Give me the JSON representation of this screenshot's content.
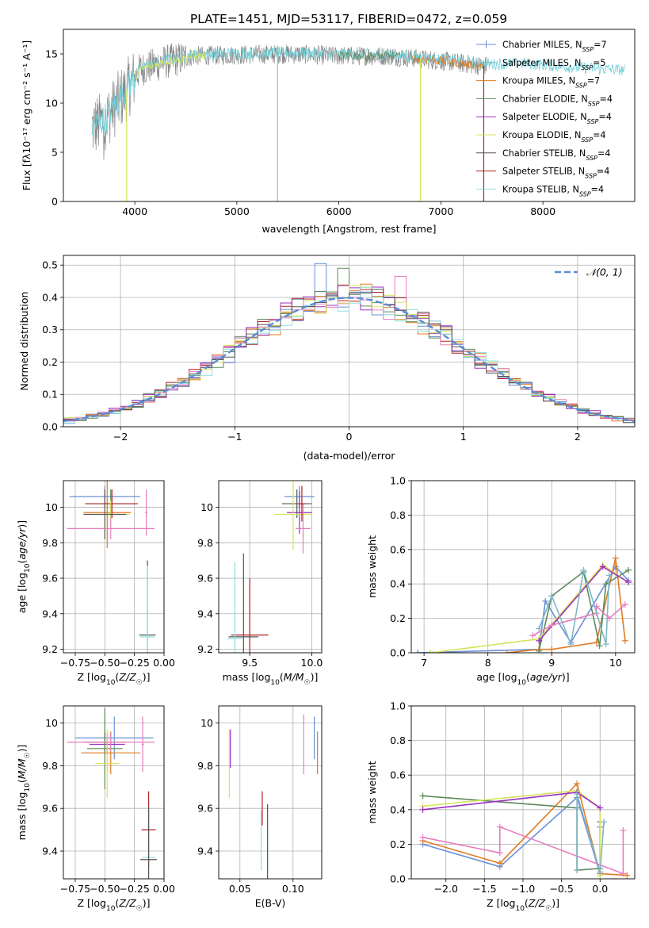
{
  "figure_title": "PLATE=1451, MJD=53117, FIBERID=0472, z=0.059",
  "chart_data": [
    {
      "id": "spectrum",
      "type": "line",
      "title": "PLATE=1451, MJD=53117, FIBERID=0472, z=0.059",
      "xlabel": "wavelength [Angstrom, rest frame]",
      "ylabel": "Flux [fλ10⁻¹⁷ erg cm⁻² s⁻¹ A⁻¹]",
      "xlim": [
        3300,
        8900
      ],
      "ylim": [
        0,
        17.5
      ],
      "xticks": [
        4000,
        5000,
        6000,
        7000,
        8000
      ],
      "yticks": [
        0,
        5,
        10,
        15
      ],
      "grid": false,
      "legend_position": "top-right",
      "legend": [
        {
          "label": "Chabrier MILES, N",
          "sub": "SSP",
          "tail": "=7",
          "color": "#6a8fd6"
        },
        {
          "label": "Salpeter MILES, N",
          "sub": "SSP",
          "tail": "=5",
          "color": "#7fb6c6"
        },
        {
          "label": "Kroupa MILES, N",
          "sub": "SSP",
          "tail": "=7",
          "color": "#e07b25"
        },
        {
          "label": "Chabrier ELODIE, N",
          "sub": "SSP",
          "tail": "=4",
          "color": "#5c8a5c"
        },
        {
          "label": "Salpeter ELODIE, N",
          "sub": "SSP",
          "tail": "=4",
          "color": "#9b30c0"
        },
        {
          "label": "Kroupa ELODIE, N",
          "sub": "SSP",
          "tail": "=4",
          "color": "#d7e35a"
        },
        {
          "label": "Chabrier STELIB, N",
          "sub": "SSP",
          "tail": "=4",
          "color": "#555555"
        },
        {
          "label": "Salpeter STELIB, N",
          "sub": "SSP",
          "tail": "=4",
          "color": "#b22222"
        },
        {
          "label": "Kroupa STELIB, N",
          "sub": "SSP",
          "tail": "=4",
          "color": "#8fe0e0"
        }
      ],
      "observed_color": "#888888",
      "model_color": "#6fd0d8",
      "spectrum_anchors": [
        [
          3580,
          7.5
        ],
        [
          3700,
          8.2
        ],
        [
          3900,
          11.0
        ],
        [
          4050,
          13.4
        ],
        [
          4300,
          14.2
        ],
        [
          4600,
          14.8
        ],
        [
          5000,
          14.9
        ],
        [
          5500,
          15.0
        ],
        [
          6000,
          14.8
        ],
        [
          6500,
          14.8
        ],
        [
          7000,
          14.3
        ],
        [
          7400,
          13.8
        ],
        [
          7800,
          13.9
        ],
        [
          8300,
          13.5
        ],
        [
          8800,
          13.2
        ]
      ],
      "observed_range": [
        3580,
        7450
      ],
      "model_range": [
        3580,
        8800
      ],
      "dips": [
        {
          "x": 3920,
          "color": "#d7e35a"
        },
        {
          "x": 5400,
          "color": "#6fd0d8"
        },
        {
          "x": 6800,
          "color": "#d7e35a"
        },
        {
          "x": 7420,
          "color": "#b22222"
        }
      ]
    },
    {
      "id": "residuals",
      "type": "histogram",
      "xlabel": "(data-model)/error",
      "ylabel": "Normed distribution",
      "xlim": [
        -2.5,
        2.5
      ],
      "ylim": [
        0,
        0.53
      ],
      "xticks": [
        -2,
        -1,
        0,
        1,
        2
      ],
      "yticks": [
        0.0,
        0.1,
        0.2,
        0.3,
        0.4,
        0.5
      ],
      "grid": true,
      "legend": "𝒩(0, 1)",
      "legend_position": "top-right",
      "bin_width": 0.1,
      "reference_curve": {
        "type": "gaussian",
        "mean": 0,
        "sigma": 1,
        "color": "#5b8bd8"
      },
      "series_colors": [
        "#6a8fd6",
        "#e07b25",
        "#5c8a5c",
        "#b22222",
        "#9b30c0",
        "#e87ec0",
        "#d7e35a",
        "#8fe0e0",
        "#555555"
      ],
      "highlight_bins": {
        "-0.25": 0.505,
        "0.5": 0.45,
        "-0.05": 0.49,
        "0.45": 0.465
      }
    },
    {
      "id": "age_vs_Z",
      "type": "errorbar",
      "xlabel": "Z [log10(Z/Z☉)]",
      "ylabel": "age  [log10(age/yr)]",
      "xlim": [
        -0.85,
        0.0
      ],
      "ylim": [
        9.18,
        10.15
      ],
      "xticks": [
        -0.75,
        -0.5,
        -0.25,
        0.0
      ],
      "xticklabels": [
        "−0.75",
        "−0.50",
        "−0.25",
        "0.00"
      ],
      "yticks": [
        9.2,
        9.4,
        9.6,
        9.8,
        10.0
      ],
      "grid": true,
      "points": [
        {
          "x": -0.5,
          "y": 10.06,
          "xerr": 0.3,
          "yerr": 0.06,
          "color": "#6a8fd6"
        },
        {
          "x": -0.45,
          "y": 10.02,
          "xerr": 0.22,
          "yerr": 0.08,
          "color": "#5c8a5c"
        },
        {
          "x": -0.48,
          "y": 9.97,
          "xerr": 0.2,
          "yerr": 0.2,
          "color": "#e07b25"
        },
        {
          "x": -0.44,
          "y": 10.02,
          "xerr": 0.22,
          "yerr": 0.08,
          "color": "#b22222"
        },
        {
          "x": -0.45,
          "y": 9.96,
          "xerr": 0.16,
          "yerr": 0.08,
          "color": "#d7e35a"
        },
        {
          "x": -0.5,
          "y": 9.96,
          "xerr": 0.18,
          "yerr": 0.14,
          "color": "#555555"
        },
        {
          "x": -0.45,
          "y": 9.88,
          "xerr": 0.37,
          "yerr": 0.06,
          "color": "#e87ec0"
        },
        {
          "x": -0.15,
          "y": 9.97,
          "xerr": 0.01,
          "yerr": 0.13,
          "color": "#e87ec0"
        },
        {
          "x": -0.14,
          "y": 9.28,
          "xerr": 0.07,
          "yerr": 0.42,
          "color": "#555555"
        },
        {
          "x": -0.14,
          "y": 9.27,
          "xerr": 0.06,
          "yerr": 0.4,
          "color": "#8fe0e0"
        }
      ]
    },
    {
      "id": "age_vs_mass",
      "type": "errorbar",
      "xlabel": "mass [log10(M/M☉)]",
      "ylabel": "",
      "xlim": [
        9.25,
        10.08
      ],
      "ylim": [
        9.18,
        10.15
      ],
      "xticks": [
        9.5,
        10.0
      ],
      "xticklabels": [
        "9.5",
        "10.0"
      ],
      "yticks": [
        9.2,
        9.4,
        9.6,
        9.8,
        10.0
      ],
      "grid": true,
      "points": [
        {
          "x": 9.9,
          "y": 10.06,
          "xerr": 0.12,
          "yerr": 0.06,
          "color": "#6a8fd6"
        },
        {
          "x": 9.88,
          "y": 10.02,
          "xerr": 0.12,
          "yerr": 0.08,
          "color": "#555555"
        },
        {
          "x": 9.9,
          "y": 9.97,
          "xerr": 0.1,
          "yerr": 0.12,
          "color": "#9b30c0"
        },
        {
          "x": 9.85,
          "y": 9.96,
          "xerr": 0.15,
          "yerr": 0.2,
          "color": "#d7e35a"
        },
        {
          "x": 9.93,
          "y": 9.88,
          "xerr": 0.06,
          "yerr": 0.14,
          "color": "#e87ec0"
        },
        {
          "x": 9.92,
          "y": 10.02,
          "xerr": 0.03,
          "yerr": 0.1,
          "color": "#b22222"
        },
        {
          "x": 9.5,
          "y": 9.28,
          "xerr": 0.15,
          "yerr": 0.32,
          "color": "#b22222"
        },
        {
          "x": 9.45,
          "y": 9.27,
          "xerr": 0.12,
          "yerr": 0.47,
          "color": "#555555"
        },
        {
          "x": 9.38,
          "y": 9.26,
          "xerr": 0.06,
          "yerr": 0.43,
          "color": "#8fe0e0"
        }
      ]
    },
    {
      "id": "mass_weight_vs_age",
      "type": "line",
      "xlabel": "age  [log10(age/yr)]",
      "ylabel": "mass weight",
      "xlim": [
        6.8,
        10.3
      ],
      "ylim": [
        0,
        1
      ],
      "xticks": [
        7,
        8,
        9,
        10
      ],
      "yticks": [
        0.0,
        0.2,
        0.4,
        0.6,
        0.8,
        1.0
      ],
      "grid": true,
      "series": [
        {
          "color": "#6a8fd6",
          "x": [
            6.9,
            8.8,
            8.9,
            9.3,
            10.0,
            10.2
          ],
          "y": [
            0.0,
            0.02,
            0.3,
            0.06,
            0.5,
            0.42
          ]
        },
        {
          "color": "#e07b25",
          "x": [
            8.3,
            8.8,
            9.0,
            9.7,
            10.0,
            10.15
          ],
          "y": [
            0.0,
            0.02,
            0.02,
            0.06,
            0.55,
            0.07
          ]
        },
        {
          "color": "#5c8a5c",
          "x": [
            8.8,
            9.0,
            9.5,
            9.75,
            9.85,
            10.2
          ],
          "y": [
            0.01,
            0.33,
            0.47,
            0.04,
            0.4,
            0.48
          ]
        },
        {
          "color": "#d7e35a",
          "x": [
            7.1,
            8.8,
            9.8,
            10.2
          ],
          "y": [
            0.0,
            0.08,
            0.51,
            0.41
          ]
        },
        {
          "color": "#9b30c0",
          "x": [
            8.8,
            9.8,
            10.2
          ],
          "y": [
            0.07,
            0.5,
            0.41
          ]
        },
        {
          "color": "#e87ec0",
          "x": [
            8.7,
            9.0,
            9.7,
            9.7,
            9.9,
            10.15
          ],
          "y": [
            0.1,
            0.16,
            0.23,
            0.27,
            0.2,
            0.28
          ]
        },
        {
          "color": "#7fb6c6",
          "x": [
            8.8,
            9.0,
            9.3,
            9.5,
            9.85,
            9.9
          ],
          "y": [
            0.14,
            0.33,
            0.05,
            0.48,
            0.05,
            0.45
          ]
        }
      ]
    },
    {
      "id": "mass_vs_Z",
      "type": "errorbar",
      "xlabel": "Z [log10(Z/Z☉)]",
      "ylabel": "mass [log10(M/M☉)]",
      "xlim": [
        -0.85,
        0.0
      ],
      "ylim": [
        9.27,
        10.08
      ],
      "xticks": [
        -0.75,
        -0.5,
        -0.25,
        0.0
      ],
      "xticklabels": [
        "−0.75",
        "−0.50",
        "−0.25",
        "0.00"
      ],
      "yticks": [
        9.4,
        9.6,
        9.8,
        10.0
      ],
      "grid": true,
      "points": [
        {
          "x": -0.42,
          "y": 9.93,
          "xerr": 0.33,
          "yerr": 0.1,
          "color": "#6a8fd6"
        },
        {
          "x": -0.5,
          "y": 9.91,
          "xerr": 0.18,
          "yerr": 0.05,
          "color": "#b22222"
        },
        {
          "x": -0.48,
          "y": 9.9,
          "xerr": 0.15,
          "yerr": 0.05,
          "color": "#9b30c0"
        },
        {
          "x": -0.5,
          "y": 9.88,
          "xerr": 0.15,
          "yerr": 0.19,
          "color": "#5c8a5c"
        },
        {
          "x": -0.45,
          "y": 9.86,
          "xerr": 0.25,
          "yerr": 0.1,
          "color": "#e07b25"
        },
        {
          "x": -0.48,
          "y": 9.81,
          "xerr": 0.1,
          "yerr": 0.16,
          "color": "#d7e35a"
        },
        {
          "x": -0.45,
          "y": 9.91,
          "xerr": 0.37,
          "yerr": 0.04,
          "color": "#e87ec0"
        },
        {
          "x": -0.18,
          "y": 9.9,
          "xerr": 0.01,
          "yerr": 0.13,
          "color": "#e87ec0"
        },
        {
          "x": -0.13,
          "y": 9.5,
          "xerr": 0.06,
          "yerr": 0.18,
          "color": "#b22222"
        },
        {
          "x": -0.13,
          "y": 9.37,
          "xerr": 0.06,
          "yerr": 0.08,
          "color": "#8fe0e0"
        },
        {
          "x": -0.13,
          "y": 9.36,
          "xerr": 0.07,
          "yerr": 0.25,
          "color": "#555555"
        }
      ]
    },
    {
      "id": "mass_vs_EBV",
      "type": "errorbar",
      "xlabel": "E(B-V)",
      "ylabel": "",
      "xlim": [
        0.03,
        0.127
      ],
      "ylim": [
        9.27,
        10.08
      ],
      "xticks": [
        0.05,
        0.1
      ],
      "xticklabels": [
        "0.05",
        "0.10"
      ],
      "yticks": [
        9.4,
        9.6,
        9.8,
        10.0
      ],
      "grid": true,
      "points": [
        {
          "x": 0.041,
          "y": 9.88,
          "xerr": 0,
          "yerr": 0.09,
          "color": "#9b30c0"
        },
        {
          "x": 0.04,
          "y": 9.81,
          "xerr": 0,
          "yerr": 0.16,
          "color": "#d7e35a"
        },
        {
          "x": 0.071,
          "y": 9.6,
          "xerr": 0,
          "yerr": 0.08,
          "color": "#b22222"
        },
        {
          "x": 0.07,
          "y": 9.45,
          "xerr": 0,
          "yerr": 0.14,
          "color": "#8fe0e0"
        },
        {
          "x": 0.076,
          "y": 9.42,
          "xerr": 0,
          "yerr": 0.2,
          "color": "#555555"
        },
        {
          "x": 0.11,
          "y": 9.9,
          "xerr": 0,
          "yerr": 0.14,
          "color": "#e87ec0"
        },
        {
          "x": 0.12,
          "y": 9.93,
          "xerr": 0,
          "yerr": 0.1,
          "color": "#6a8fd6"
        },
        {
          "x": 0.123,
          "y": 9.86,
          "xerr": 0,
          "yerr": 0.1,
          "color": "#e07b25"
        }
      ]
    },
    {
      "id": "mass_weight_vs_Z",
      "type": "line",
      "xlabel": "Z [log10(Z/Z☉)]",
      "ylabel": "mass weight",
      "xlim": [
        -2.45,
        0.45
      ],
      "ylim": [
        0,
        1
      ],
      "xticks": [
        -2.0,
        -1.5,
        -1.0,
        -0.5,
        0.0
      ],
      "xticklabels": [
        "−2.0",
        "−1.5",
        "−1.0",
        "−0.5",
        "0.0"
      ],
      "yticks": [
        0.0,
        0.2,
        0.4,
        0.6,
        0.8,
        1.0
      ],
      "grid": true,
      "series": [
        {
          "color": "#6a8fd6",
          "x": [
            -2.3,
            -1.3,
            -0.3,
            0.0,
            0.0
          ],
          "y": [
            0.2,
            0.07,
            0.47,
            0.03,
            0.3
          ]
        },
        {
          "color": "#e07b25",
          "x": [
            -2.3,
            -1.3,
            -0.3,
            0.0,
            0.35
          ],
          "y": [
            0.22,
            0.09,
            0.55,
            0.03,
            0.02
          ]
        },
        {
          "color": "#5c8a5c",
          "x": [
            -2.3,
            -0.3,
            -0.3,
            0.0,
            0.0
          ],
          "y": [
            0.48,
            0.41,
            0.05,
            0.06,
            0.33
          ]
        },
        {
          "color": "#d7e35a",
          "x": [
            -2.3,
            -0.3,
            0.0,
            0.0
          ],
          "y": [
            0.42,
            0.51,
            0.41,
            0.02
          ]
        },
        {
          "color": "#9b30c0",
          "x": [
            -2.3,
            -0.3,
            0.0
          ],
          "y": [
            0.4,
            0.5,
            0.41
          ]
        },
        {
          "color": "#e87ec0",
          "x": [
            -2.3,
            -1.3,
            -1.3,
            0.3,
            0.3
          ],
          "y": [
            0.24,
            0.15,
            0.3,
            0.03,
            0.28
          ]
        },
        {
          "color": "#7fb6c6",
          "x": [
            -0.3,
            -0.3,
            0.0,
            0.05
          ],
          "y": [
            0.05,
            0.49,
            0.04,
            0.33
          ]
        }
      ]
    }
  ]
}
